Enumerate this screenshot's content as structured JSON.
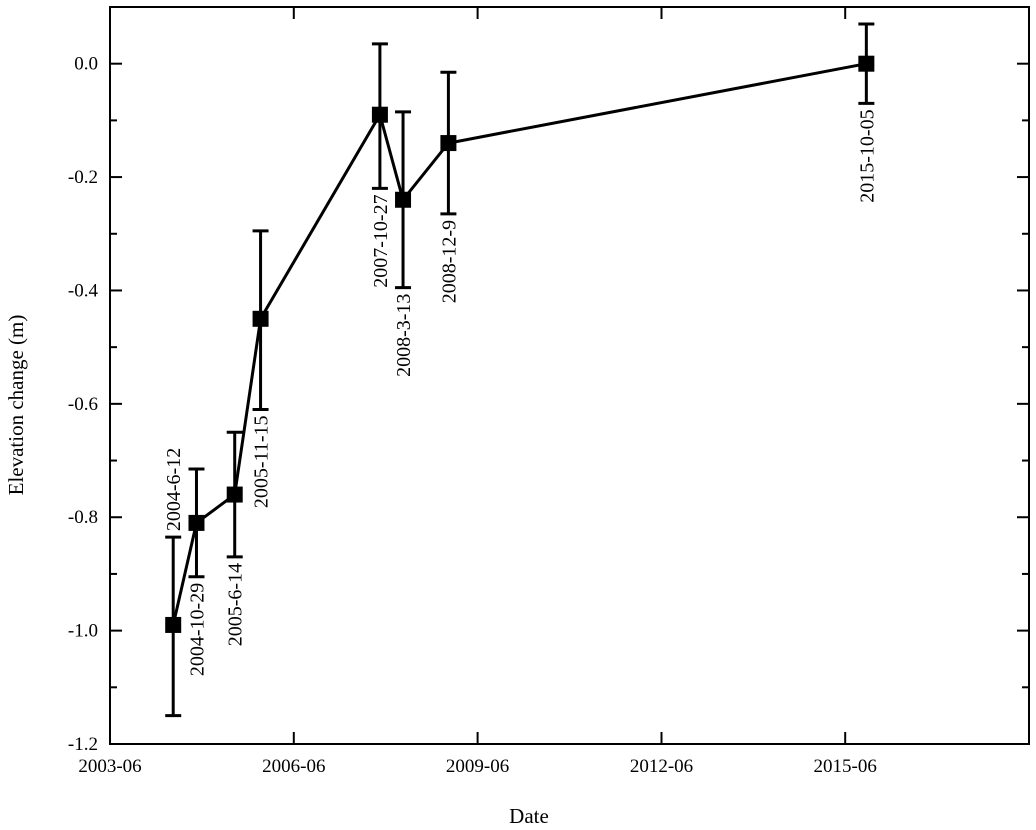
{
  "chart_data": {
    "type": "line",
    "title": "",
    "xlabel": "Date",
    "ylabel": "Elevation change (m)",
    "x_ticks": [
      "2003-06",
      "2006-06",
      "2009-06",
      "2012-06",
      "2015-06"
    ],
    "xlim": [
      "2003-06",
      "2018-06"
    ],
    "ylim": [
      -1.2,
      0.1
    ],
    "y_ticks": [
      "0.0",
      "-0.2",
      "-0.4",
      "-0.6",
      "-0.8",
      "-1.0",
      "-1.2"
    ],
    "grid": false,
    "legend": "none",
    "series": [
      {
        "color": "#000000",
        "marker": "square",
        "points": [
          {
            "x": "2004-06-12",
            "y": -0.99,
            "err_low": -1.15,
            "err_high": -0.835,
            "label": "2004-6-12"
          },
          {
            "x": "2004-10-29",
            "y": -0.81,
            "err_low": -0.905,
            "err_high": -0.715,
            "label": "2004-10-29"
          },
          {
            "x": "2005-06-14",
            "y": -0.76,
            "err_low": -0.87,
            "err_high": -0.65,
            "label": "2005-6-14"
          },
          {
            "x": "2005-11-15",
            "y": -0.45,
            "err_low": -0.61,
            "err_high": -0.295,
            "label": "2005-11-15"
          },
          {
            "x": "2007-10-27",
            "y": -0.09,
            "err_low": -0.22,
            "err_high": 0.035,
            "label": "2007-10-27"
          },
          {
            "x": "2008-03-13",
            "y": -0.24,
            "err_low": -0.395,
            "err_high": -0.085,
            "label": "2008-3-13"
          },
          {
            "x": "2008-12-09",
            "y": -0.14,
            "err_low": -0.265,
            "err_high": -0.015,
            "label": "2008-12-9"
          },
          {
            "x": "2015-10-05",
            "y": 0.0,
            "err_low": -0.07,
            "err_high": 0.07,
            "label": "2015-10-05"
          }
        ]
      }
    ]
  }
}
